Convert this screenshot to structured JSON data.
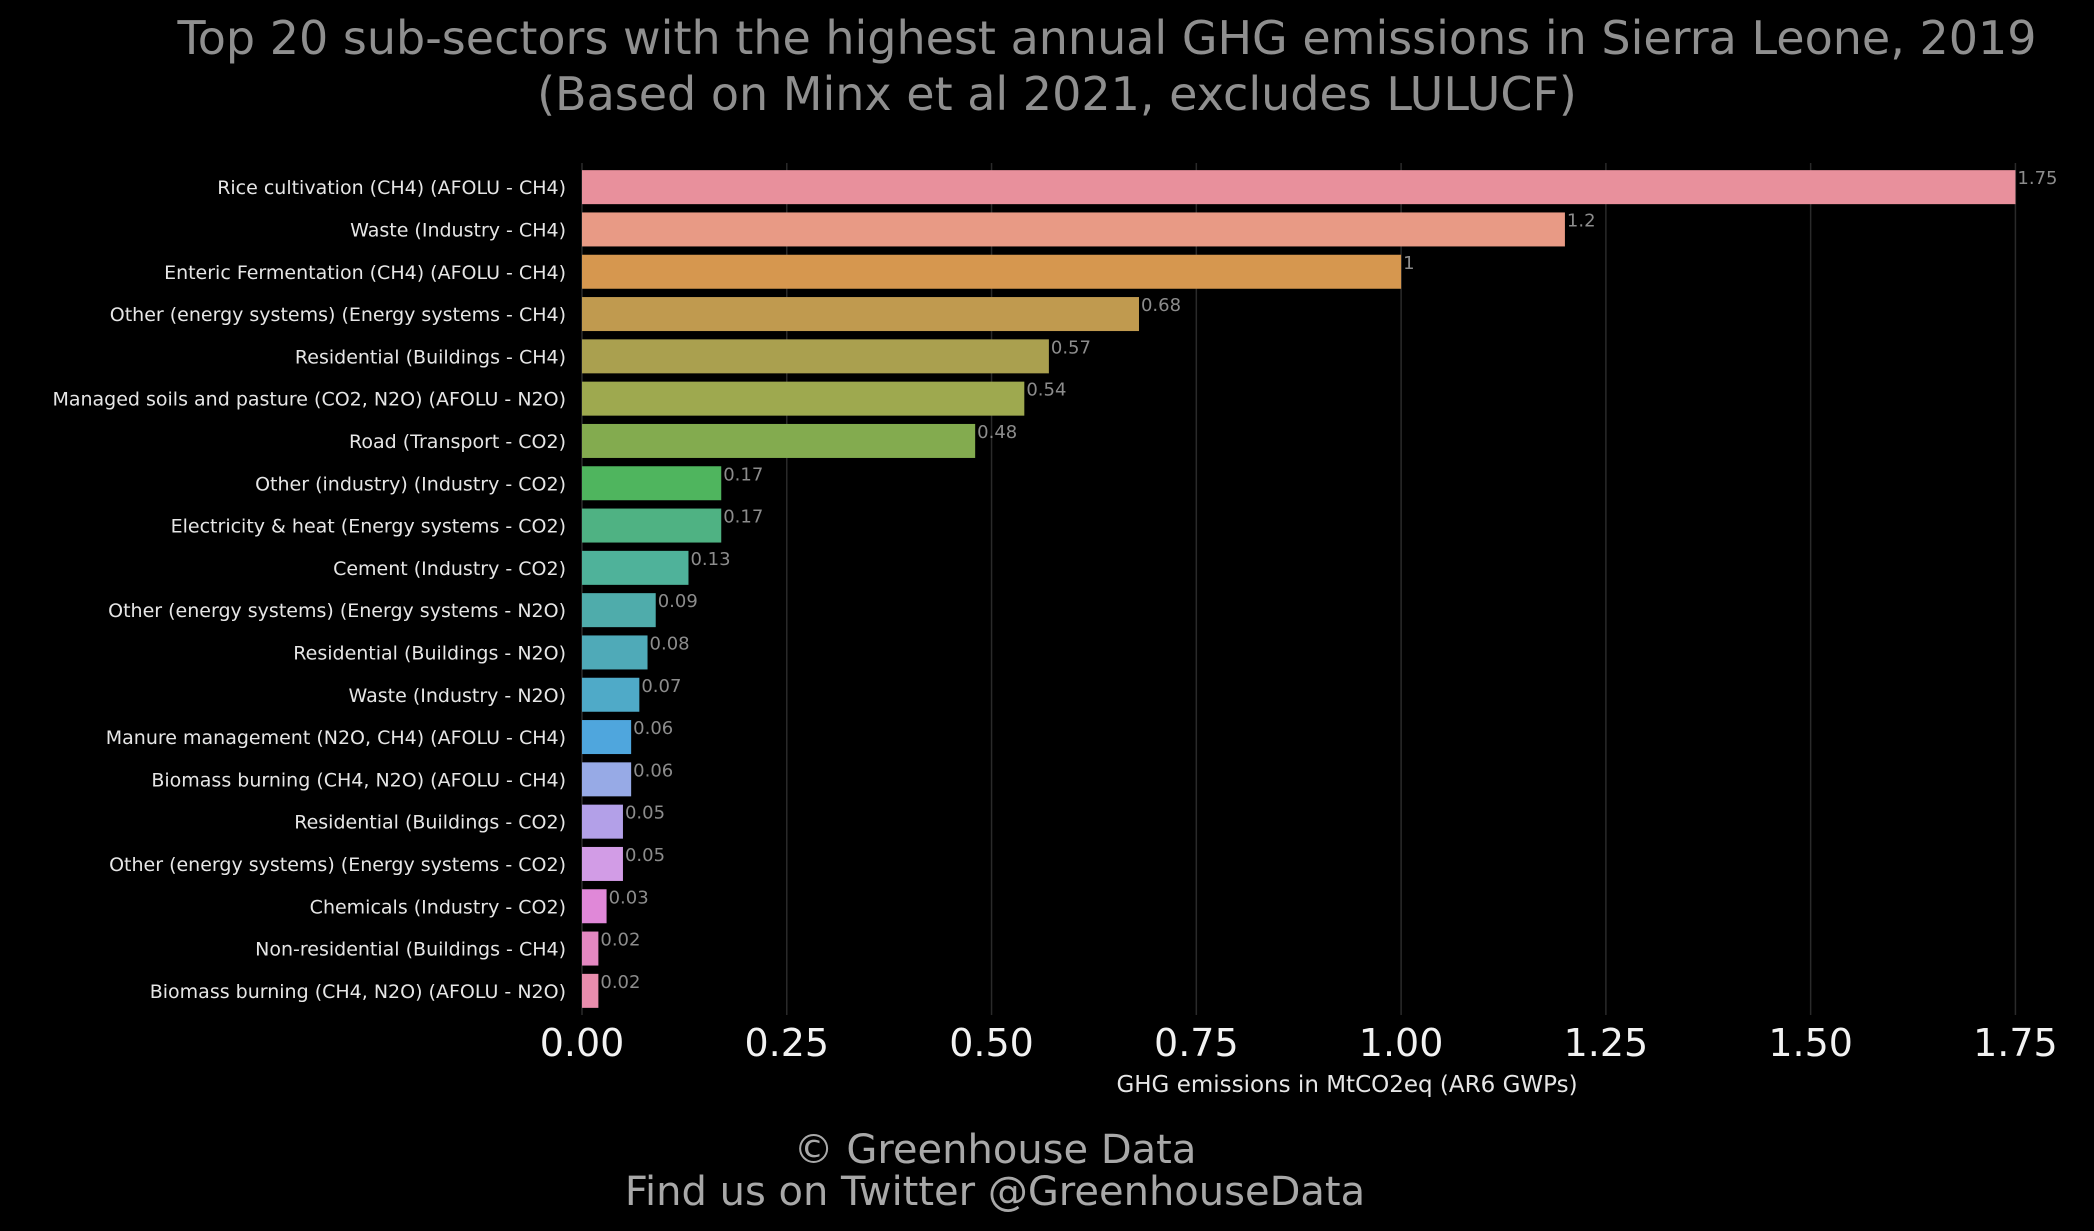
{
  "title_line1": "Top 20 sub-sectors with the highest annual GHG emissions in Sierra Leone, 2019",
  "title_line2": "(Based on Minx et al 2021, excludes LULUCF)",
  "footer_line1": "© Greenhouse Data",
  "footer_line2": "Find us on Twitter @GreenhouseData",
  "chart_data": {
    "type": "bar",
    "orientation": "horizontal",
    "xlabel": "GHG emissions in MtCO2eq (AR6 GWPs)",
    "xlim": [
      0,
      1.78
    ],
    "xticks": [
      "0.00",
      "0.25",
      "0.50",
      "0.75",
      "1.00",
      "1.25",
      "1.50",
      "1.75"
    ],
    "xtick_values": [
      0,
      0.25,
      0.5,
      0.75,
      1.0,
      1.25,
      1.5,
      1.75
    ],
    "grid": "vertical",
    "categories": [
      "Rice cultivation (CH4) (AFOLU - CH4)",
      "Waste (Industry - CH4)",
      "Enteric Fermentation (CH4) (AFOLU - CH4)",
      "Other (energy systems) (Energy systems - CH4)",
      "Residential (Buildings - CH4)",
      "Managed soils and pasture (CO2, N2O) (AFOLU - N2O)",
      "Road (Transport - CO2)",
      "Other (industry) (Industry - CO2)",
      "Electricity & heat (Energy systems - CO2)",
      "Cement (Industry - CO2)",
      "Other (energy systems) (Energy systems - N2O)",
      "Residential (Buildings - N2O)",
      "Waste (Industry - N2O)",
      "Manure management (N2O, CH4) (AFOLU - CH4)",
      "Biomass burning (CH4, N2O) (AFOLU - CH4)",
      "Residential (Buildings - CO2)",
      "Other (energy systems) (Energy systems - CO2)",
      "Chemicals (Industry - CO2)",
      "Non-residential (Buildings - CH4)",
      "Biomass burning (CH4, N2O) (AFOLU - N2O)"
    ],
    "values": [
      1.75,
      1.2,
      1,
      0.68,
      0.57,
      0.54,
      0.48,
      0.17,
      0.17,
      0.13,
      0.09,
      0.08,
      0.07,
      0.06,
      0.06,
      0.05,
      0.05,
      0.03,
      0.02,
      0.02
    ],
    "value_labels": [
      "1.75",
      "1.2",
      "1",
      "0.68",
      "0.57",
      "0.54",
      "0.48",
      "0.17",
      "0.17",
      "0.13",
      "0.09",
      "0.08",
      "0.07",
      "0.06",
      "0.06",
      "0.05",
      "0.05",
      "0.03",
      "0.02",
      "0.02"
    ],
    "colors": [
      "#e8909c",
      "#e89a85",
      "#d6974f",
      "#c09a4f",
      "#aaa04f",
      "#9ea94f",
      "#83ab4f",
      "#4fb55e",
      "#4fb283",
      "#4fb29a",
      "#4facab",
      "#4faab8",
      "#4faac8",
      "#4fa6dd",
      "#97aae6",
      "#b3a0e8",
      "#d29ce6",
      "#e088d8",
      "#e488c1",
      "#e88dad"
    ]
  }
}
